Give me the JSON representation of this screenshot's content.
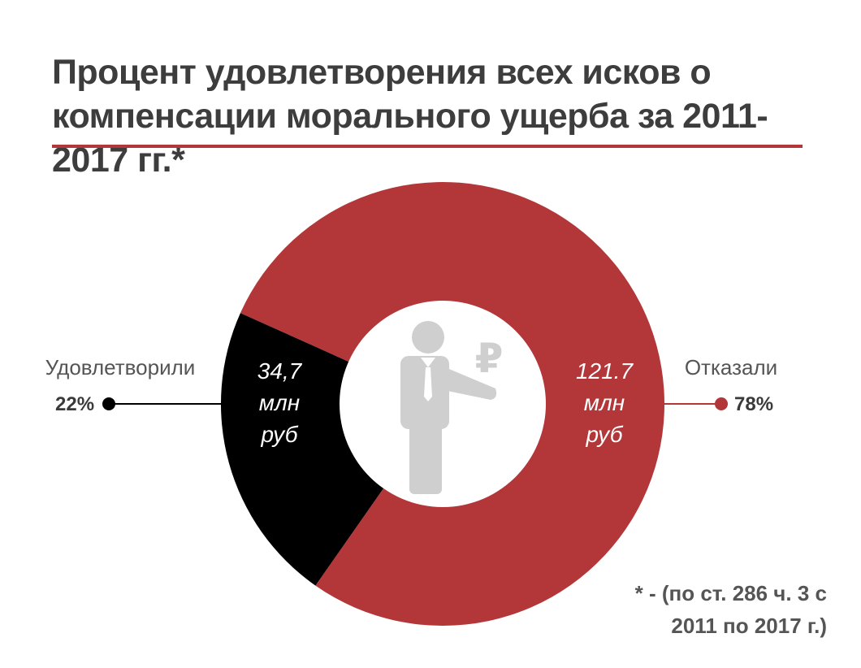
{
  "title_line1": "Процент удовлетворения всех исков о",
  "title_line2": "компенсации морального ущерба за 2011-2017 гг.*",
  "footnote_line1": "* - (по ст. 286 ч. 3 с",
  "footnote_line2": "2011 по 2017 г.)",
  "colors": {
    "accent": "#b33638",
    "satisfied": "#000000",
    "refused": "#b33638",
    "icon": "#cfcfcf"
  },
  "icon": "businessman-with-ruble-icon",
  "ruble_symbol": "₽",
  "chart_data": {
    "type": "pie",
    "style": "donut",
    "title": "Процент удовлетворения всех исков о компенсации морального ущерба за 2011-2017 гг.*",
    "slices": [
      {
        "key": "satisfied",
        "label": "Удовлетворили",
        "percent": 22,
        "percent_label": "22%",
        "amount_lines": [
          "34,7",
          "млн",
          "руб"
        ]
      },
      {
        "key": "refused",
        "label": "Отказали",
        "percent": 78,
        "percent_label": "78%",
        "amount_lines": [
          "121.7",
          "млн",
          "руб"
        ]
      }
    ]
  }
}
